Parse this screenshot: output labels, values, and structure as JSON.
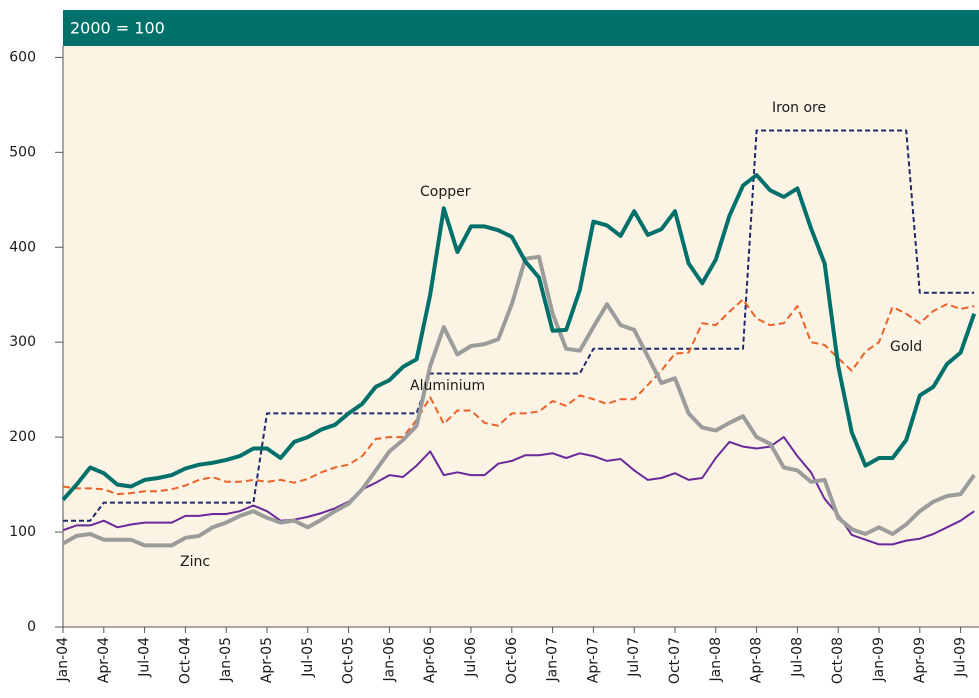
{
  "chart_data": {
    "type": "line",
    "title": "2000 = 100",
    "categories": [
      "Jan-04",
      null,
      null,
      "Apr-04",
      null,
      null,
      "Jul-04",
      null,
      null,
      "Oct-04",
      null,
      null,
      "Jan-05",
      null,
      null,
      "Apr-05",
      null,
      null,
      "Jul-05",
      null,
      null,
      "Oct-05",
      null,
      null,
      "Jan-06",
      null,
      null,
      "Apr-06",
      null,
      null,
      "Jul-06",
      null,
      null,
      "Oct-06",
      null,
      null,
      "Jan-07",
      null,
      null,
      "Apr-07",
      null,
      null,
      "Jul-07",
      null,
      null,
      "Oct-07",
      null,
      null,
      "Jan-08",
      null,
      null,
      "Apr-08",
      null,
      null,
      "Jul-08",
      null,
      null,
      "Oct-08",
      null,
      null,
      "Jan-09",
      null,
      null,
      "Apr-09",
      null,
      null,
      "Jul-09",
      null
    ],
    "ylim": [
      0,
      612
    ],
    "yticks": [
      0,
      100,
      200,
      300,
      400,
      500,
      600
    ],
    "series": [
      {
        "name": "Copper",
        "color": "#00706b",
        "values": [
          134,
          150,
          168,
          162,
          150,
          148,
          155,
          157,
          160,
          167,
          171,
          173,
          176,
          180,
          188,
          188,
          178,
          195,
          200,
          208,
          213,
          225,
          235,
          253,
          260,
          274,
          282,
          350,
          441,
          395,
          422,
          422,
          418,
          411,
          385,
          368,
          312,
          313,
          355,
          427,
          423,
          412,
          438,
          413,
          419,
          438,
          383,
          362,
          387,
          433,
          465,
          476,
          460,
          453,
          462,
          420,
          383,
          275,
          205,
          170,
          178,
          178,
          197,
          244,
          253,
          277,
          289,
          330
        ]
      },
      {
        "name": "Iron ore",
        "color": "#1f2a6b",
        "values": [
          112,
          112,
          112,
          131,
          131,
          131,
          131,
          131,
          131,
          131,
          131,
          131,
          131,
          131,
          131,
          225,
          225,
          225,
          225,
          225,
          225,
          225,
          225,
          225,
          225,
          225,
          225,
          267,
          267,
          267,
          267,
          267,
          267,
          267,
          267,
          267,
          267,
          267,
          267,
          293,
          293,
          293,
          293,
          293,
          293,
          293,
          293,
          293,
          293,
          293,
          293,
          523,
          523,
          523,
          523,
          523,
          523,
          523,
          523,
          523,
          523,
          523,
          523,
          352,
          352,
          352,
          352,
          352
        ]
      },
      {
        "name": "Gold",
        "color": "#e8622a",
        "values": [
          148,
          146,
          146,
          145,
          140,
          141,
          143,
          143,
          145,
          149,
          155,
          158,
          153,
          153,
          155,
          153,
          155,
          152,
          156,
          163,
          168,
          171,
          180,
          198,
          200,
          200,
          218,
          242,
          214,
          228,
          228,
          215,
          212,
          225,
          225,
          227,
          238,
          233,
          244,
          240,
          235,
          240,
          240,
          255,
          270,
          288,
          289,
          320,
          318,
          332,
          345,
          325,
          318,
          320,
          338,
          300,
          297,
          283,
          270,
          290,
          300,
          337,
          330,
          320,
          333,
          340,
          335,
          338
        ]
      },
      {
        "name": "Aluminium",
        "color": "#6a2a9a",
        "values": [
          102,
          107,
          107,
          112,
          105,
          108,
          110,
          110,
          110,
          117,
          117,
          119,
          119,
          122,
          128,
          122,
          112,
          113,
          116,
          120,
          125,
          132,
          145,
          152,
          160,
          158,
          170,
          185,
          160,
          163,
          160,
          160,
          172,
          175,
          181,
          181,
          183,
          178,
          183,
          180,
          175,
          177,
          165,
          155,
          157,
          162,
          155,
          157,
          178,
          195,
          190,
          188,
          190,
          200,
          180,
          163,
          135,
          118,
          97,
          92,
          87,
          87,
          91,
          93,
          98,
          105,
          112,
          122
        ]
      },
      {
        "name": "Zinc",
        "color": "#9c9c9c",
        "values": [
          88,
          96,
          98,
          92,
          92,
          92,
          86,
          86,
          86,
          94,
          96,
          105,
          110,
          117,
          122,
          115,
          110,
          112,
          105,
          113,
          122,
          130,
          145,
          165,
          185,
          197,
          212,
          275,
          316,
          287,
          296,
          298,
          303,
          340,
          388,
          390,
          330,
          293,
          291,
          316,
          340,
          318,
          313,
          285,
          257,
          262,
          225,
          210,
          207,
          215,
          222,
          200,
          193,
          168,
          165,
          153,
          155,
          115,
          103,
          98,
          105,
          98,
          108,
          122,
          132,
          138,
          140,
          160
        ]
      }
    ]
  }
}
